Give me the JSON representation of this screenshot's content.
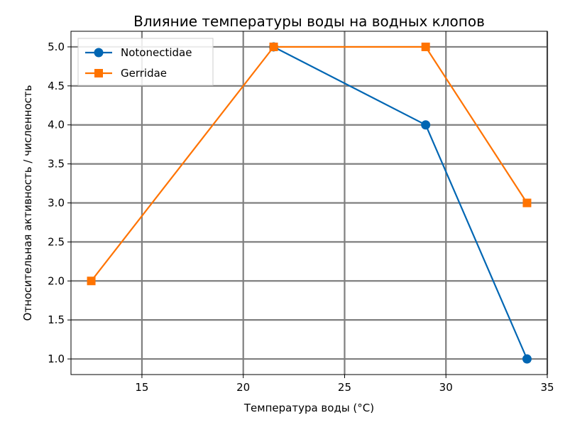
{
  "chart_data": {
    "type": "line",
    "title": "Влияние температуры воды на водных клопов",
    "xlabel": "Температура воды (°C)",
    "ylabel": "Относительная активность / численность",
    "xlim": [
      11.5,
      35
    ],
    "ylim": [
      0.8,
      5.2
    ],
    "xticks": [
      15,
      20,
      25,
      30,
      35
    ],
    "yticks": [
      1.0,
      1.5,
      2.0,
      2.5,
      3.0,
      3.5,
      4.0,
      4.5,
      5.0
    ],
    "xtick_labels": [
      "15",
      "20",
      "25",
      "30",
      "35"
    ],
    "ytick_labels": [
      "1.0",
      "1.5",
      "2.0",
      "2.5",
      "3.0",
      "3.5",
      "4.0",
      "4.5",
      "5.0"
    ],
    "grid": true,
    "legend_position": "top-left",
    "series": [
      {
        "name": "Notonectidae",
        "color": "#0066b3",
        "marker": "circle",
        "x": [
          21.5,
          29,
          34
        ],
        "y": [
          5.0,
          4.0,
          1.0
        ]
      },
      {
        "name": "Gerridae",
        "color": "#ff7300",
        "marker": "square",
        "x": [
          12.5,
          21.5,
          29,
          34
        ],
        "y": [
          2.0,
          5.0,
          5.0,
          3.0
        ]
      }
    ]
  }
}
